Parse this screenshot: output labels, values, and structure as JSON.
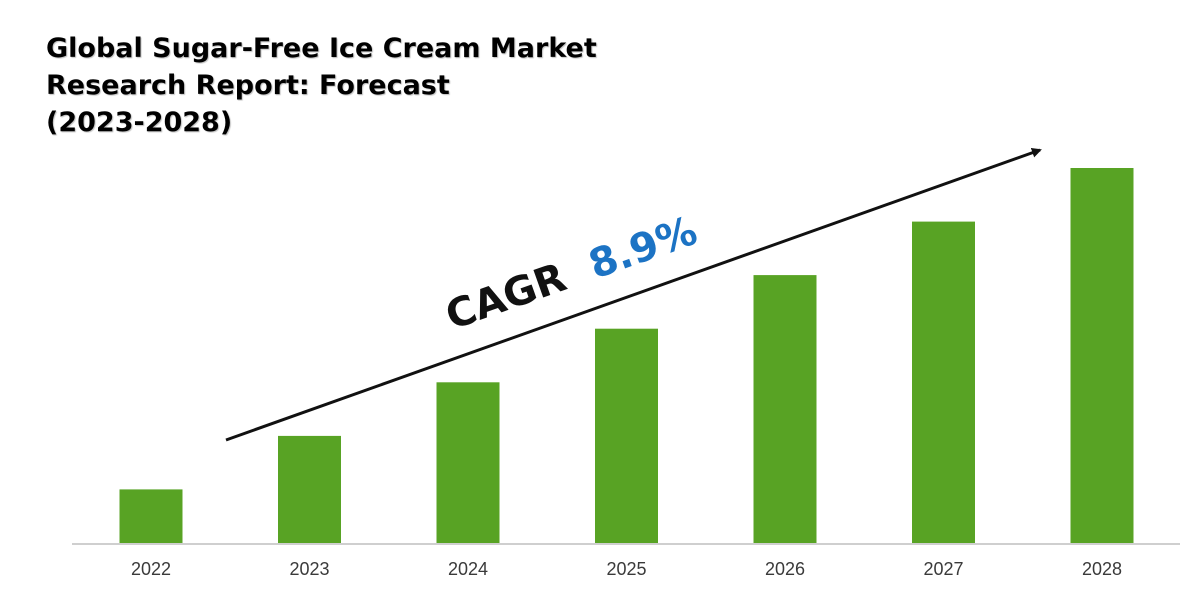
{
  "title_lines": [
    "Global Sugar-Free Ice Cream Market",
    "Research Report: Forecast",
    "(2023-2028)"
  ],
  "colors": {
    "bar": "#58a324",
    "axis": "#bfbfbf",
    "arrow": "#111111",
    "cagr_label": "#111111",
    "cagr_value": "#1c73c4"
  },
  "cagr": {
    "label": "CAGR",
    "value": "8.9%"
  },
  "chart_data": {
    "type": "bar",
    "title": "Global Sugar-Free Ice Cream Market Research Report: Forecast (2023-2028)",
    "categories": [
      "2022",
      "2023",
      "2024",
      "2025",
      "2026",
      "2027",
      "2028"
    ],
    "values": [
      1.0,
      2.0,
      3.0,
      4.0,
      5.0,
      6.0,
      7.0
    ],
    "ylim": [
      0,
      7.2
    ],
    "xlabel": "",
    "ylabel": "",
    "grid": false,
    "annotations": [
      "CAGR 8.9%"
    ]
  }
}
